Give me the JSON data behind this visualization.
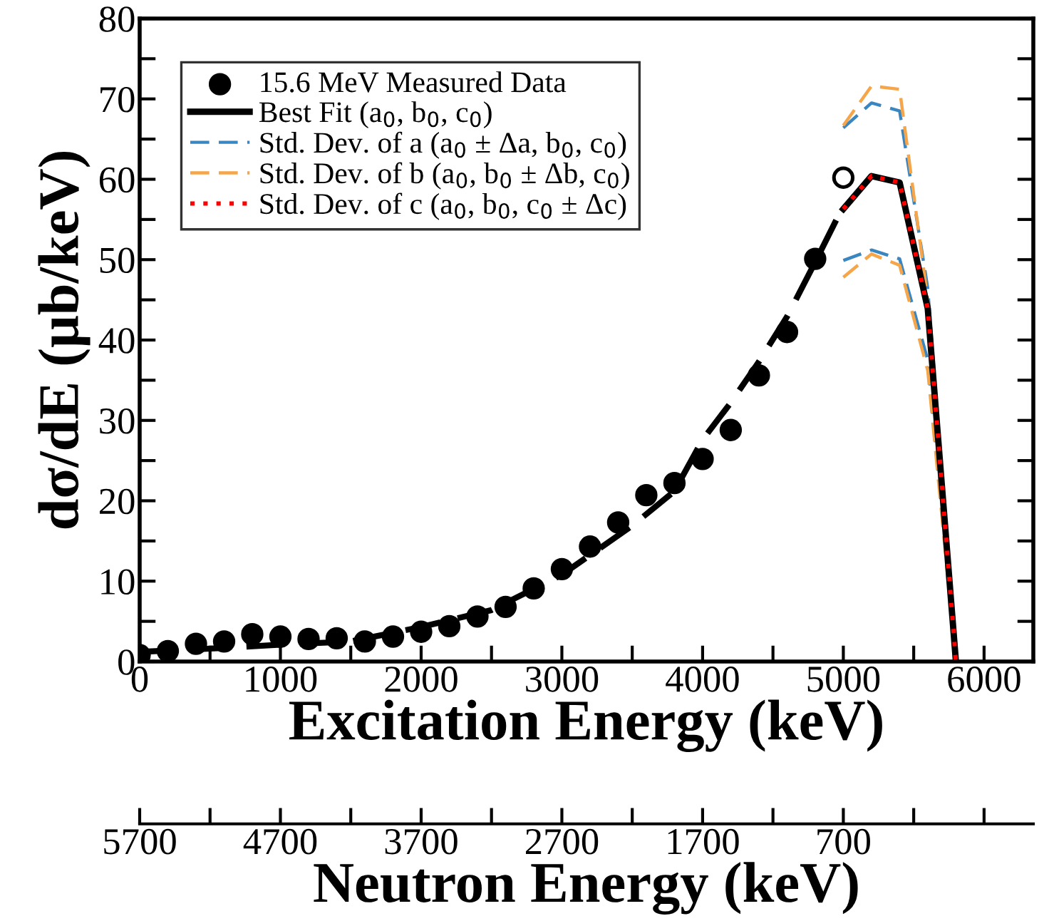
{
  "chart_data": {
    "type": "line",
    "xlabel": "Excitation Energy (keV)",
    "ylabel": "dσ/dE (μb/keV)",
    "x2label": "Neutron Energy (keV)",
    "xlim": [
      0,
      6350
    ],
    "ylim": [
      0,
      80
    ],
    "xticks": [
      0,
      {
        "value": 500,
        "label": null
      },
      1000,
      {
        "value": 1500,
        "label": null
      },
      2000,
      {
        "value": 2500,
        "label": null
      },
      3000,
      {
        "value": 3500,
        "label": null
      },
      4000,
      {
        "value": 4500,
        "label": null
      },
      5000,
      {
        "value": 5500,
        "label": null
      },
      6000
    ],
    "yticks": [
      0,
      {
        "value": 5,
        "label": null
      },
      10,
      {
        "value": 15,
        "label": null
      },
      20,
      {
        "value": 25,
        "label": null
      },
      30,
      {
        "value": 35,
        "label": null
      },
      40,
      {
        "value": 45,
        "label": null
      },
      50,
      {
        "value": 55,
        "label": null
      },
      60,
      {
        "value": 65,
        "label": null
      },
      70,
      {
        "value": 75,
        "label": null
      },
      80
    ],
    "x2lim": [
      5700,
      -650
    ],
    "x2ticks": [
      5700,
      {
        "value": 5200,
        "label": null
      },
      4700,
      {
        "value": 4200,
        "label": null
      },
      3700,
      {
        "value": 3200,
        "label": null
      },
      2700,
      {
        "value": 2200,
        "label": null
      },
      1700,
      {
        "value": 1200,
        "label": null
      },
      700,
      {
        "value": 200,
        "label": null
      },
      {
        "value": -300,
        "label": null
      }
    ],
    "grid": false,
    "legend": "top left",
    "series": [
      {
        "name": "15.6 MeV Measured Data",
        "type": "scatter",
        "marker": "circle",
        "color": "#000000",
        "x": [
          0,
          200,
          400,
          600,
          800,
          1000,
          1200,
          1400,
          1600,
          1800,
          2000,
          2200,
          2400,
          2600,
          2800,
          3000,
          3200,
          3400,
          3600,
          3800,
          4000,
          4200,
          4400,
          4600,
          4800
        ],
        "values": [
          0.8,
          1.3,
          2.2,
          2.5,
          3.4,
          3.1,
          2.8,
          2.9,
          2.5,
          3.1,
          3.7,
          4.4,
          5.6,
          6.8,
          9.1,
          11.5,
          14.3,
          17.3,
          20.7,
          22.2,
          25.2,
          28.8,
          35.6,
          41.0,
          50.1
        ]
      },
      {
        "type": "scatter",
        "marker": "circle",
        "color": "#ffffff",
        "x": [
          5000
        ],
        "values": [
          60.2
        ]
      },
      {
        "line_style": "dashed",
        "color": "#000000",
        "x": [
          0,
          500,
          1000,
          1500,
          2000,
          2500,
          3000,
          3500,
          3800,
          4000,
          4200,
          4400,
          4600,
          4800,
          4960
        ],
        "values": [
          1.2,
          1.6,
          2.1,
          2.5,
          4.3,
          6.4,
          10.8,
          16.9,
          21.2,
          27.6,
          32.2,
          37.3,
          42.9,
          49.7,
          55.3
        ]
      },
      {
        "name": "Std. Dev. of a (a$_{0}$ ± Δa, b$_{0}$, c$_{0}$)",
        "line_style": "dashed",
        "color": "#3a86c0",
        "x": [
          5000,
          5200,
          5400,
          5600,
          5800
        ],
        "values": [
          66.4,
          69.5,
          68.5,
          46.4,
          0
        ]
      },
      {
        "line_style": "dashed",
        "color": "#3a86c0",
        "x": [
          5000,
          5200,
          5400,
          5600,
          5800
        ],
        "values": [
          49.9,
          51.2,
          50.1,
          37.5,
          0
        ]
      },
      {
        "name": "Std. Dev. of b (a$_{0}$, b$_{0}$ ± Δb, c$_{0}$)",
        "line_style": "dashed",
        "color": "#f5a54a",
        "x": [
          5000,
          5200,
          5400,
          5600,
          5800
        ],
        "values": [
          66.7,
          71.6,
          71.2,
          45.0,
          0
        ]
      },
      {
        "line_style": "dashed",
        "color": "#f5a54a",
        "x": [
          5000,
          5200,
          5400,
          5600,
          5800
        ],
        "values": [
          47.8,
          50.7,
          49.3,
          36.2,
          0
        ]
      },
      {
        "name": "Best Fit (a$_{0}$, b$_{0}$, c$_{0}$)",
        "line_style": "solid",
        "color": "#000000",
        "x": [
          5000,
          5200,
          5400,
          5600,
          5800
        ],
        "values": [
          56.3,
          60.4,
          59.6,
          43.9,
          0
        ]
      },
      {
        "name": "Std. Dev. of c (a$_{0}$, b$_{0}$, c$_{0}$ ± Δc)",
        "line_style": "dotted",
        "color": "#ff0000",
        "x": [
          5000,
          5200,
          5400,
          5600,
          5800
        ],
        "values": [
          56.3,
          60.4,
          59.6,
          43.9,
          0
        ]
      }
    ]
  }
}
